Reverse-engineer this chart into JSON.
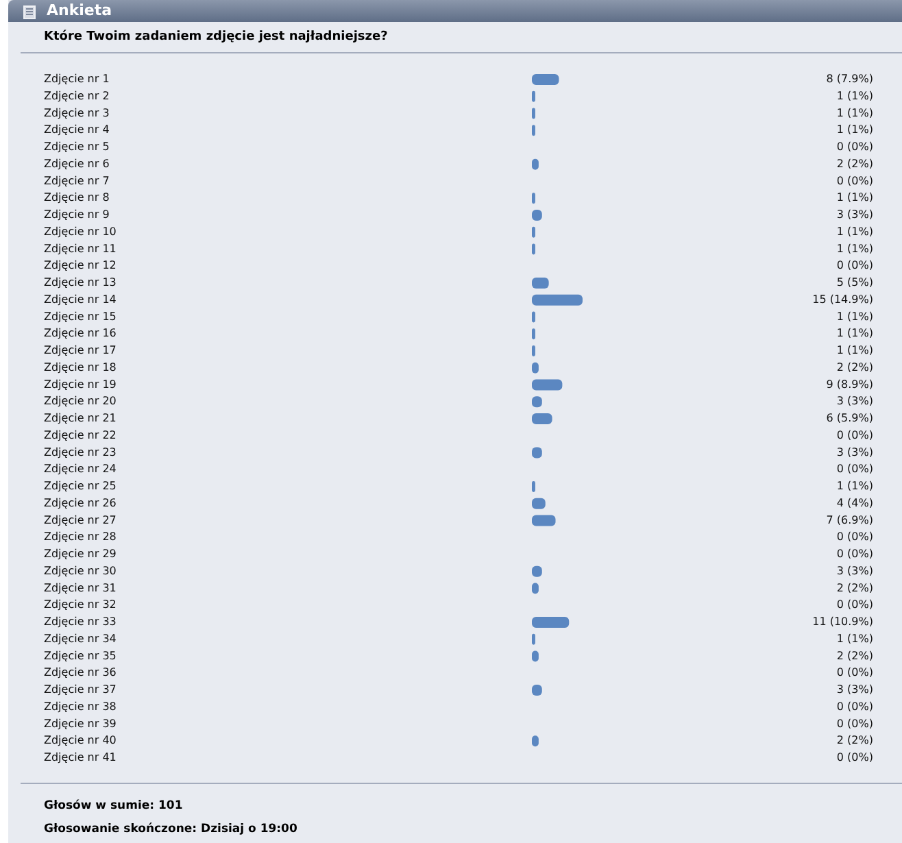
{
  "chart_data": {
    "type": "bar",
    "orientation": "horizontal",
    "title": "Ankieta",
    "subtitle": "Które Twoim zadaniem zdjęcie jest najładniejsze?",
    "categories": [
      "Zdjęcie nr 1",
      "Zdjęcie nr 2",
      "Zdjęcie nr 3",
      "Zdjęcie nr 4",
      "Zdjęcie nr 5",
      "Zdjęcie nr 6",
      "Zdjęcie nr 7",
      "Zdjęcie nr 8",
      "Zdjęcie nr 9",
      "Zdjęcie nr 10",
      "Zdjęcie nr 11",
      "Zdjęcie nr 12",
      "Zdjęcie nr 13",
      "Zdjęcie nr 14",
      "Zdjęcie nr 15",
      "Zdjęcie nr 16",
      "Zdjęcie nr 17",
      "Zdjęcie nr 18",
      "Zdjęcie nr 19",
      "Zdjęcie nr 20",
      "Zdjęcie nr 21",
      "Zdjęcie nr 22",
      "Zdjęcie nr 23",
      "Zdjęcie nr 24",
      "Zdjęcie nr 25",
      "Zdjęcie nr 26",
      "Zdjęcie nr 27",
      "Zdjęcie nr 28",
      "Zdjęcie nr 29",
      "Zdjęcie nr 30",
      "Zdjęcie nr 31",
      "Zdjęcie nr 32",
      "Zdjęcie nr 33",
      "Zdjęcie nr 34",
      "Zdjęcie nr 35",
      "Zdjęcie nr 36",
      "Zdjęcie nr 37",
      "Zdjęcie nr 38",
      "Zdjęcie nr 39",
      "Zdjęcie nr 40",
      "Zdjęcie nr 41"
    ],
    "values": [
      8,
      1,
      1,
      1,
      0,
      2,
      0,
      1,
      3,
      1,
      1,
      0,
      5,
      15,
      1,
      1,
      1,
      2,
      9,
      3,
      6,
      0,
      3,
      0,
      1,
      4,
      7,
      0,
      0,
      3,
      2,
      0,
      11,
      1,
      2,
      0,
      3,
      0,
      0,
      2,
      0
    ],
    "value_labels": [
      "8 (7.9%)",
      "1 (1%)",
      "1 (1%)",
      "1 (1%)",
      "0 (0%)",
      "2 (2%)",
      "0 (0%)",
      "1 (1%)",
      "3 (3%)",
      "1 (1%)",
      "1 (1%)",
      "0 (0%)",
      "5 (5%)",
      "15 (14.9%)",
      "1 (1%)",
      "1 (1%)",
      "1 (1%)",
      "2 (2%)",
      "9 (8.9%)",
      "3 (3%)",
      "6 (5.9%)",
      "0 (0%)",
      "3 (3%)",
      "0 (0%)",
      "1 (1%)",
      "4 (4%)",
      "7 (6.9%)",
      "0 (0%)",
      "0 (0%)",
      "3 (3%)",
      "2 (2%)",
      "0 (0%)",
      "11 (10.9%)",
      "1 (1%)",
      "2 (2%)",
      "0 (0%)",
      "3 (3%)",
      "0 (0%)",
      "0 (0%)",
      "2 (2%)",
      "0 (0%)"
    ],
    "color": "#5b87c1",
    "annotations": [
      "Głosów w sumie: 101",
      "Głosowanie skończone: Dzisiaj o 19:00"
    ]
  }
}
